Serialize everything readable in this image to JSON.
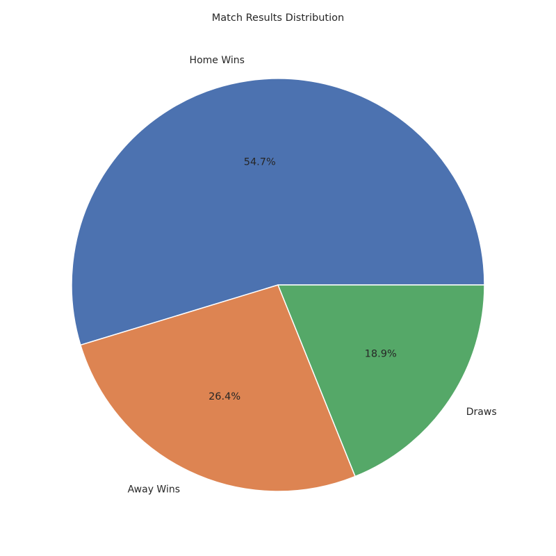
{
  "chart_data": {
    "type": "pie",
    "title": "Match Results Distribution",
    "start_angle_deg": 0,
    "direction": "counterclockwise",
    "slices": [
      {
        "label": "Home Wins",
        "value": 54.7,
        "pct_label": "54.7%",
        "color": "#4c72b0"
      },
      {
        "label": "Away Wins",
        "value": 26.4,
        "pct_label": "26.4%",
        "color": "#dd8452"
      },
      {
        "label": "Draws",
        "value": 18.9,
        "pct_label": "18.9%",
        "color": "#55a868"
      }
    ],
    "wedge_edge_color": "#ffffff"
  }
}
